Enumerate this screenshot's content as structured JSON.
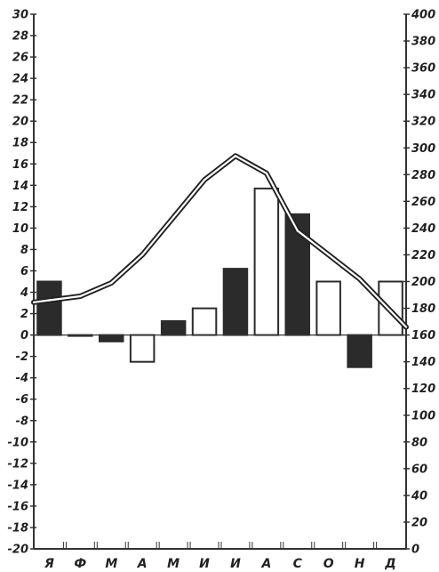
{
  "chart_data": {
    "type": "bar",
    "categories": [
      "Я",
      "Ф",
      "М",
      "А",
      "М",
      "И",
      "И",
      "А",
      "С",
      "О",
      "Н",
      "Д"
    ],
    "series": [
      {
        "kind": "bar",
        "axis": "left",
        "values": [
          5,
          0,
          -0.6,
          -2.5,
          1.3,
          2.5,
          6.2,
          13.7,
          11.3,
          5,
          -3,
          5
        ],
        "fills": [
          "dark",
          "light",
          "dark",
          "light",
          "dark",
          "light",
          "dark",
          "light",
          "dark",
          "light",
          "dark",
          "light"
        ]
      },
      {
        "kind": "line",
        "axis": "right",
        "values": [
          186,
          189,
          199,
          220,
          248,
          276,
          294,
          281,
          238,
          220,
          202,
          178
        ]
      }
    ],
    "y_left": {
      "ylim": [
        -20,
        30
      ],
      "ticks": [
        30,
        28,
        26,
        24,
        22,
        20,
        18,
        16,
        14,
        12,
        10,
        8,
        6,
        4,
        2,
        0,
        -2,
        -4,
        -6,
        -8,
        -10,
        -12,
        -14,
        -16,
        -18,
        -20
      ]
    },
    "y_right": {
      "ylim": [
        0,
        400
      ],
      "ticks": [
        400,
        380,
        360,
        340,
        320,
        300,
        280,
        260,
        240,
        220,
        200,
        180,
        160,
        140,
        120,
        100,
        80,
        60,
        40,
        20,
        0
      ]
    },
    "grid": false,
    "colors": {
      "bar_dark": "#2b2b2b",
      "bar_light": "#ffffff",
      "axis": "#333333",
      "line": "#222222"
    }
  }
}
